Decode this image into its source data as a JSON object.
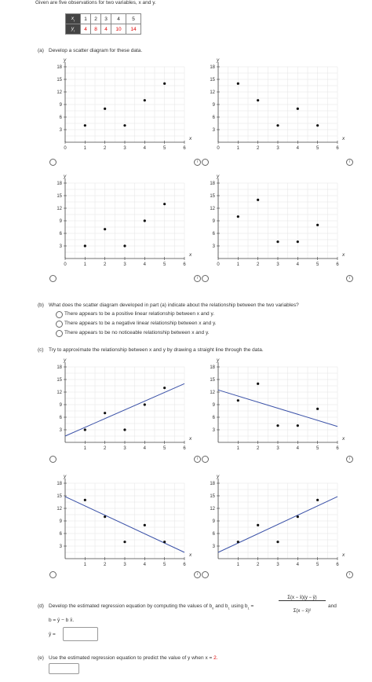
{
  "intro": "Given are five observations for two variables, x and y.",
  "table": {
    "x_label": "x",
    "x_sub": "i",
    "y_label": "y",
    "y_sub": "i",
    "x": [
      "1",
      "2",
      "3",
      "4",
      "5"
    ],
    "y": [
      "4",
      "8",
      "4",
      "10",
      "14"
    ]
  },
  "part_a": {
    "label": "(a)",
    "text": "Develop a scatter diagram for these data."
  },
  "part_b": {
    "label": "(b)",
    "text": "What does the scatter diagram developed in part (a) indicate about the relationship between the two variables?",
    "options": [
      "There appears to be a positive linear relationship between x and y.",
      "There appears to be a negative linear relationship between x and y.",
      "There appears to be no noticeable relationship between x and y."
    ]
  },
  "part_c": {
    "label": "(c)",
    "text": "Try to approximate the relationship between x and y by drawing a straight line through the data."
  },
  "part_d": {
    "label": "(d)",
    "text1": "Develop the estimated regression equation by computing the values of b",
    "text1_sub": "0",
    "and_b1": "and b",
    "b1_sub": "1",
    "using": "using b",
    "eq": "=",
    "numerator": "Σ(x  − x̄)(y  − ȳ)",
    "denominator": "Σ(x  − x̄)²",
    "and": "and",
    "b0_eq": "b  = ȳ − b x̄.",
    "yhat": "ŷ ="
  },
  "part_e": {
    "label": "(e)",
    "text": "Use the estimated regression equation to predict the value of y when x =",
    "x_value": "2."
  },
  "chart_data": [
    {
      "type": "scatter",
      "panel": "a1",
      "x": [
        1,
        2,
        3,
        4,
        5
      ],
      "y": [
        4,
        8,
        4,
        10,
        14
      ],
      "xlabel": "x",
      "ylabel": "y",
      "xlim": [
        0,
        6
      ],
      "ylim": [
        0,
        18
      ],
      "xticks": [
        0,
        1,
        2,
        3,
        4,
        5,
        6
      ],
      "yticks": [
        3,
        6,
        9,
        12,
        15,
        18
      ]
    },
    {
      "type": "scatter",
      "panel": "a2",
      "x": [
        1,
        2,
        3,
        4,
        5
      ],
      "y": [
        14,
        10,
        4,
        8,
        4
      ],
      "xlabel": "x",
      "ylabel": "y",
      "xlim": [
        0,
        6
      ],
      "ylim": [
        0,
        18
      ],
      "xticks": [
        0,
        1,
        2,
        3,
        4,
        5,
        6
      ],
      "yticks": [
        3,
        6,
        9,
        12,
        15,
        18
      ]
    },
    {
      "type": "scatter",
      "panel": "a3",
      "x": [
        1,
        2,
        3,
        4,
        5
      ],
      "y": [
        3,
        7,
        3,
        9,
        13
      ],
      "xlabel": "x",
      "ylabel": "y",
      "xlim": [
        0,
        6
      ],
      "ylim": [
        0,
        18
      ],
      "xticks": [
        0,
        1,
        2,
        3,
        4,
        5,
        6
      ],
      "yticks": [
        3,
        6,
        9,
        12,
        15,
        18
      ]
    },
    {
      "type": "scatter",
      "panel": "a4",
      "x": [
        1,
        2,
        3,
        4,
        5
      ],
      "y": [
        10,
        14,
        4,
        4,
        8
      ],
      "xlabel": "x",
      "ylabel": "y",
      "xlim": [
        0,
        6
      ],
      "ylim": [
        0,
        18
      ],
      "xticks": [
        0,
        1,
        2,
        3,
        4,
        5,
        6
      ],
      "yticks": [
        3,
        6,
        9,
        12,
        15,
        18
      ]
    },
    {
      "type": "scatter",
      "panel": "c1",
      "x": [
        1,
        2,
        3,
        4,
        5
      ],
      "y": [
        3,
        7,
        3,
        9,
        13
      ],
      "line": [
        [
          0,
          1.5
        ],
        [
          6,
          14
        ]
      ],
      "xlabel": "x",
      "ylabel": "y",
      "xlim": [
        0,
        6
      ],
      "ylim": [
        0,
        18
      ],
      "xticks": [
        1,
        2,
        3,
        4,
        5,
        6
      ],
      "yticks": [
        3,
        6,
        9,
        12,
        15,
        18
      ]
    },
    {
      "type": "scatter",
      "panel": "c2",
      "x": [
        1,
        2,
        3,
        4,
        5
      ],
      "y": [
        10,
        14,
        4,
        4,
        8
      ],
      "line": [
        [
          0,
          12.5
        ],
        [
          6,
          3.8
        ]
      ],
      "xlabel": "x",
      "ylabel": "y",
      "xlim": [
        0,
        6
      ],
      "ylim": [
        0,
        18
      ],
      "xticks": [
        1,
        2,
        3,
        4,
        5,
        6
      ],
      "yticks": [
        3,
        6,
        9,
        12,
        15,
        18
      ]
    },
    {
      "type": "scatter",
      "panel": "c3",
      "x": [
        1,
        2,
        3,
        4,
        5
      ],
      "y": [
        14,
        10,
        4,
        8,
        4
      ],
      "line": [
        [
          0,
          14.8
        ],
        [
          6,
          1.5
        ]
      ],
      "xlabel": "x",
      "ylabel": "y",
      "xlim": [
        0,
        6
      ],
      "ylim": [
        0,
        18
      ],
      "xticks": [
        1,
        2,
        3,
        4,
        5,
        6
      ],
      "yticks": [
        3,
        6,
        9,
        12,
        15,
        18
      ]
    },
    {
      "type": "scatter",
      "panel": "c4",
      "x": [
        1,
        2,
        3,
        4,
        5
      ],
      "y": [
        4,
        8,
        4,
        10,
        14
      ],
      "line": [
        [
          0,
          1.5
        ],
        [
          6,
          14.8
        ]
      ],
      "xlabel": "x",
      "ylabel": "y",
      "xlim": [
        0,
        6
      ],
      "ylim": [
        0,
        18
      ],
      "xticks": [
        1,
        2,
        3,
        4,
        5,
        6
      ],
      "yticks": [
        3,
        6,
        9,
        12,
        15,
        18
      ]
    }
  ]
}
